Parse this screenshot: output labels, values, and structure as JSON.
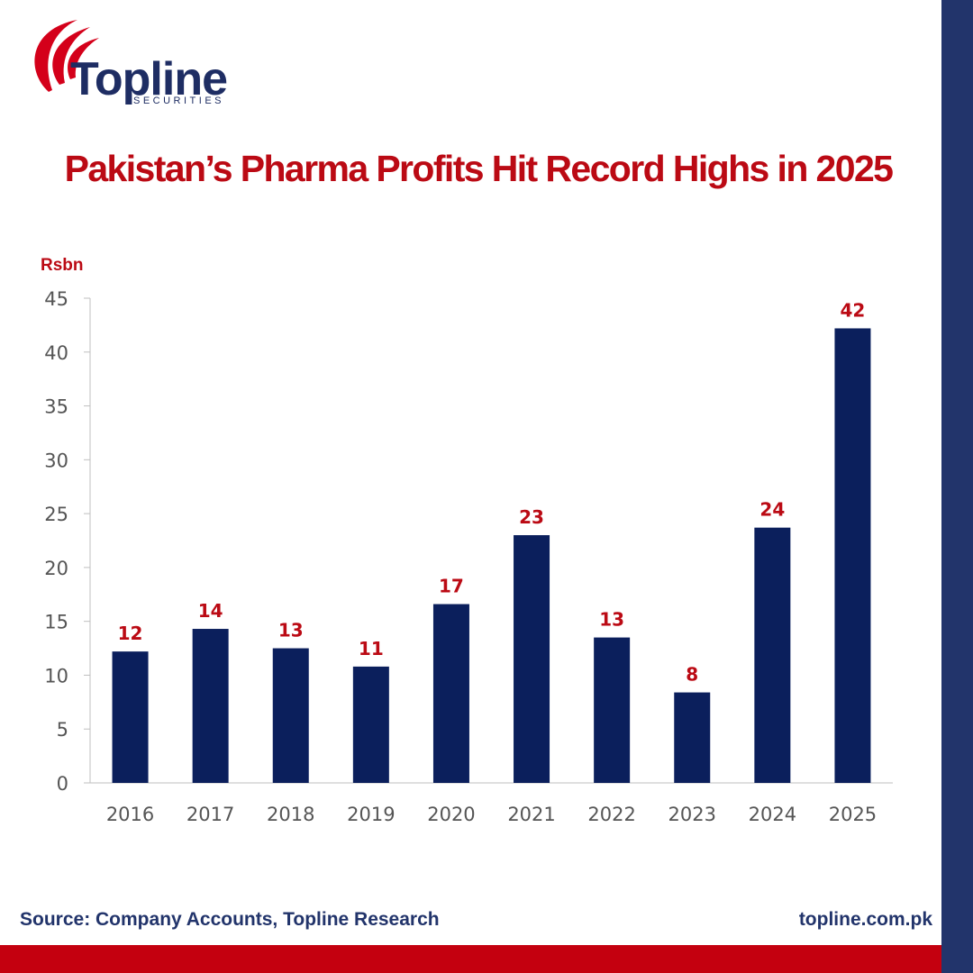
{
  "brand": {
    "name": "Topline",
    "tagline": "SECURITIES"
  },
  "title": "Pakistan’s Pharma Profits Hit Record Highs in 2025",
  "footer": {
    "source": "Source: Company Accounts, Topline Research",
    "website": "topline.com.pk"
  },
  "colors": {
    "bar": "#0b1f5c",
    "label": "#bb0a14",
    "accent_red": "#c4000f",
    "accent_navy": "#22346b"
  },
  "chart_data": {
    "type": "bar",
    "title": "Pakistan’s Pharma Profits Hit Record Highs in 2025",
    "ylabel": "Rsbn",
    "xlabel": "",
    "categories": [
      "2016",
      "2017",
      "2018",
      "2019",
      "2020",
      "2021",
      "2022",
      "2023",
      "2024",
      "2025"
    ],
    "values": [
      12.2,
      14.3,
      12.5,
      10.8,
      16.6,
      23.0,
      13.5,
      8.4,
      23.7,
      42.2
    ],
    "data_labels": [
      "12",
      "14",
      "13",
      "11",
      "17",
      "23",
      "13",
      "8",
      "24",
      "42"
    ],
    "ylim": [
      0,
      45
    ],
    "yticks": [
      0,
      5,
      10,
      15,
      20,
      25,
      30,
      35,
      40,
      45
    ],
    "grid": false,
    "legend": "none"
  }
}
